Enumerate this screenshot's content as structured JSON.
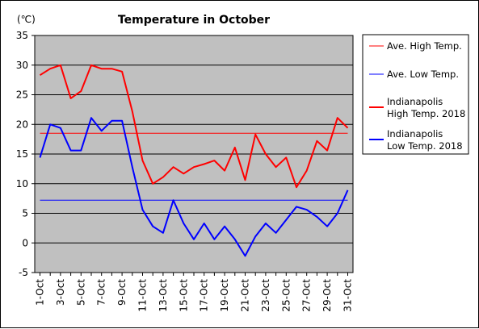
{
  "chart_data": {
    "type": "line",
    "title": "Temperature in October",
    "unit": "(℃)",
    "ylim": [
      -5,
      35
    ],
    "yticks": [
      35,
      30,
      25,
      20,
      15,
      10,
      5,
      0,
      -5
    ],
    "grid": true,
    "legend_position": "right",
    "x_tick_labels": [
      "1-Oct",
      "3-Oct",
      "5-Oct",
      "7-Oct",
      "9-Oct",
      "11-Oct",
      "13-Oct",
      "15-Oct",
      "17-Oct",
      "19-Oct",
      "21-Oct",
      "23-Oct",
      "25-Oct",
      "27-Oct",
      "29-Oct",
      "31-Oct"
    ],
    "x_days": [
      1,
      2,
      3,
      4,
      5,
      6,
      7,
      8,
      9,
      10,
      11,
      12,
      13,
      14,
      15,
      16,
      17,
      18,
      19,
      20,
      21,
      22,
      23,
      24,
      25,
      26,
      27,
      28,
      29,
      30,
      31
    ],
    "series": [
      {
        "name": "Ave. High Temp.",
        "legend_lines": [
          "Ave. High Temp."
        ],
        "color": "#ff0000",
        "stroke": "thin",
        "values": [
          18.5,
          18.5,
          18.5,
          18.5,
          18.5,
          18.5,
          18.5,
          18.5,
          18.5,
          18.5,
          18.5,
          18.5,
          18.5,
          18.5,
          18.5,
          18.5,
          18.5,
          18.5,
          18.5,
          18.5,
          18.5,
          18.5,
          18.5,
          18.5,
          18.5,
          18.5,
          18.5,
          18.5,
          18.5,
          18.5,
          18.5
        ]
      },
      {
        "name": "Ave. Low Temp.",
        "legend_lines": [
          "Ave. Low Temp."
        ],
        "color": "#0000ff",
        "stroke": "thin",
        "values": [
          7.2,
          7.2,
          7.2,
          7.2,
          7.2,
          7.2,
          7.2,
          7.2,
          7.2,
          7.2,
          7.2,
          7.2,
          7.2,
          7.2,
          7.2,
          7.2,
          7.2,
          7.2,
          7.2,
          7.2,
          7.2,
          7.2,
          7.2,
          7.2,
          7.2,
          7.2,
          7.2,
          7.2,
          7.2,
          7.2,
          7.2
        ]
      },
      {
        "name": "Indianapolis High Temp. 2018",
        "legend_lines": [
          "Indianapolis",
          "High Temp. 2018"
        ],
        "color": "#ff0000",
        "stroke": "thick",
        "values": [
          28.3,
          29.4,
          30.0,
          24.4,
          25.6,
          30.0,
          29.4,
          29.4,
          28.9,
          22.2,
          13.9,
          10.0,
          11.1,
          12.8,
          11.7,
          12.8,
          13.3,
          13.9,
          12.2,
          16.1,
          10.6,
          18.3,
          15.0,
          12.8,
          14.4,
          9.4,
          12.2,
          17.2,
          15.6,
          21.1,
          19.4
        ]
      },
      {
        "name": "Indianapolis Low Temp. 2018",
        "legend_lines": [
          "Indianapolis",
          "Low Temp. 2018"
        ],
        "color": "#0000ff",
        "stroke": "thick",
        "values": [
          14.4,
          20.0,
          19.4,
          15.6,
          15.6,
          21.1,
          18.9,
          20.6,
          20.6,
          12.8,
          5.6,
          2.8,
          1.7,
          7.2,
          3.3,
          0.6,
          3.3,
          0.6,
          2.8,
          0.6,
          -2.2,
          1.1,
          3.3,
          1.7,
          3.9,
          6.1,
          5.6,
          4.4,
          2.8,
          5.0,
          8.9
        ]
      }
    ]
  }
}
